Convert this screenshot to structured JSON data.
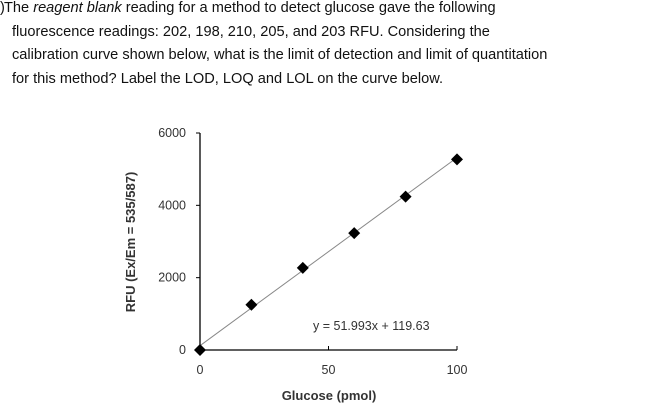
{
  "question": {
    "prefix": ")",
    "line1_a": "The ",
    "line1_em": "reagent blank",
    "line1_b": " reading for a method to detect glucose gave the following",
    "line2": "fluorescence readings: 202, 198, 210, 205, and 203 RFU. Considering the",
    "line3": "calibration curve shown below, what is the limit of detection and limit of quantitation",
    "line4": "for this method? Label the LOD, LOQ and LOL on the curve below."
  },
  "chart_data": {
    "type": "scatter",
    "xlabel": "Glucose (pmol)",
    "ylabel": "RFU (Ex/Em = 535/587)",
    "xlim": [
      0,
      100
    ],
    "ylim": [
      0,
      6000
    ],
    "xticks": [
      "0",
      "50",
      "100"
    ],
    "yticks": [
      "0",
      "2000",
      "4000",
      "6000"
    ],
    "x": [
      0,
      20,
      40,
      60,
      80,
      100
    ],
    "y": [
      0,
      1250,
      2270,
      3230,
      4240,
      5270
    ],
    "trendline": {
      "slope": 51.993,
      "intercept": 119.63,
      "label": "y = 51.993x + 119.63"
    },
    "marker": "diamond",
    "marker_color": "#000000",
    "line_color": "#888888",
    "grid": false,
    "legend": "none"
  }
}
